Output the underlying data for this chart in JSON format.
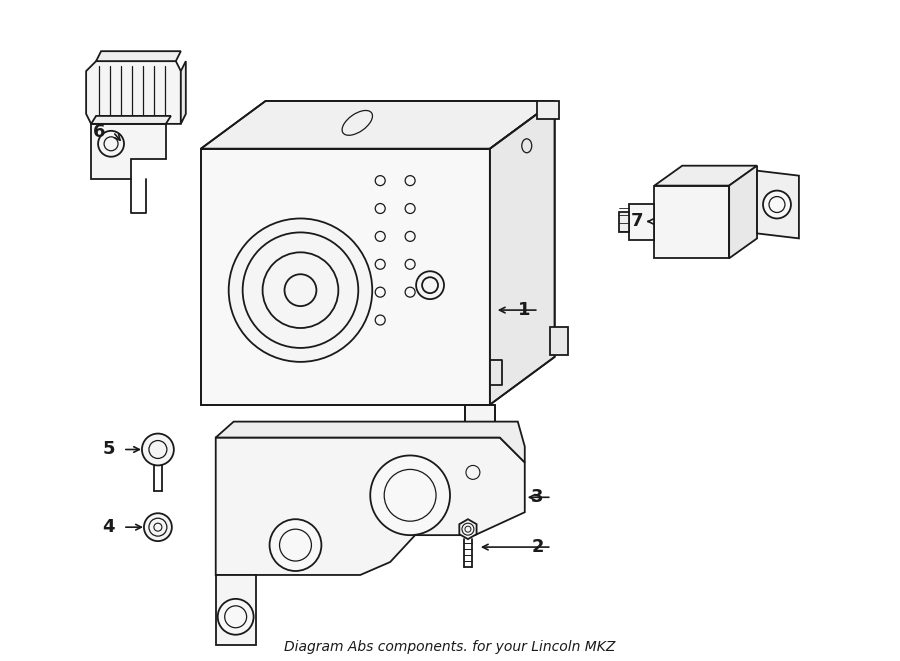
{
  "title": "Diagram Abs components. for your Lincoln MKZ",
  "background_color": "#ffffff",
  "line_color": "#1a1a1a",
  "line_width": 1.3,
  "fig_width": 9.0,
  "fig_height": 6.61,
  "dpi": 100
}
